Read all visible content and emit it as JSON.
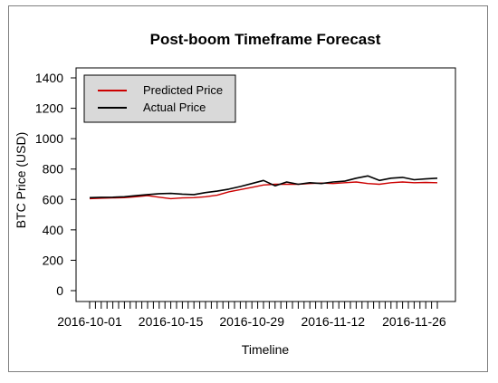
{
  "chart_data": {
    "type": "line",
    "title": "Post-boom Timeframe Forecast",
    "xlabel": "Timeline",
    "ylabel": "BTC Price (USD)",
    "ylim": [
      0,
      1400
    ],
    "yticks": [
      0,
      200,
      400,
      600,
      800,
      1000,
      1200,
      1400
    ],
    "x_tick_labels": [
      "2016-10-01",
      "2016-10-15",
      "2016-10-29",
      "2016-11-12",
      "2016-11-26"
    ],
    "x_tick_label_days": [
      0,
      14,
      28,
      42,
      56
    ],
    "x_minor_tick_count": 61,
    "legend_position": "top-left",
    "legend_background": "#d9d9d9",
    "x": [
      "2016-10-01",
      "2016-10-03",
      "2016-10-05",
      "2016-10-07",
      "2016-10-09",
      "2016-10-11",
      "2016-10-13",
      "2016-10-15",
      "2016-10-17",
      "2016-10-19",
      "2016-10-21",
      "2016-10-23",
      "2016-10-25",
      "2016-10-27",
      "2016-10-29",
      "2016-10-31",
      "2016-11-02",
      "2016-11-04",
      "2016-11-06",
      "2016-11-08",
      "2016-11-10",
      "2016-11-12",
      "2016-11-14",
      "2016-11-16",
      "2016-11-18",
      "2016-11-20",
      "2016-11-22",
      "2016-11-24",
      "2016-11-26",
      "2016-11-28",
      "2016-11-30"
    ],
    "series": [
      {
        "name": "Predicted Price",
        "color": "#cc0000",
        "values": [
          605,
          608,
          610,
          612,
          618,
          625,
          615,
          605,
          610,
          612,
          618,
          628,
          650,
          665,
          680,
          695,
          700,
          700,
          700,
          705,
          708,
          705,
          710,
          715,
          705,
          700,
          710,
          715,
          710,
          712,
          710
        ]
      },
      {
        "name": "Actual Price",
        "color": "#000000",
        "values": [
          612,
          614,
          615,
          618,
          625,
          632,
          638,
          640,
          635,
          632,
          645,
          655,
          668,
          685,
          705,
          725,
          690,
          715,
          700,
          710,
          705,
          715,
          720,
          740,
          755,
          725,
          740,
          745,
          730,
          735,
          740
        ]
      }
    ]
  }
}
